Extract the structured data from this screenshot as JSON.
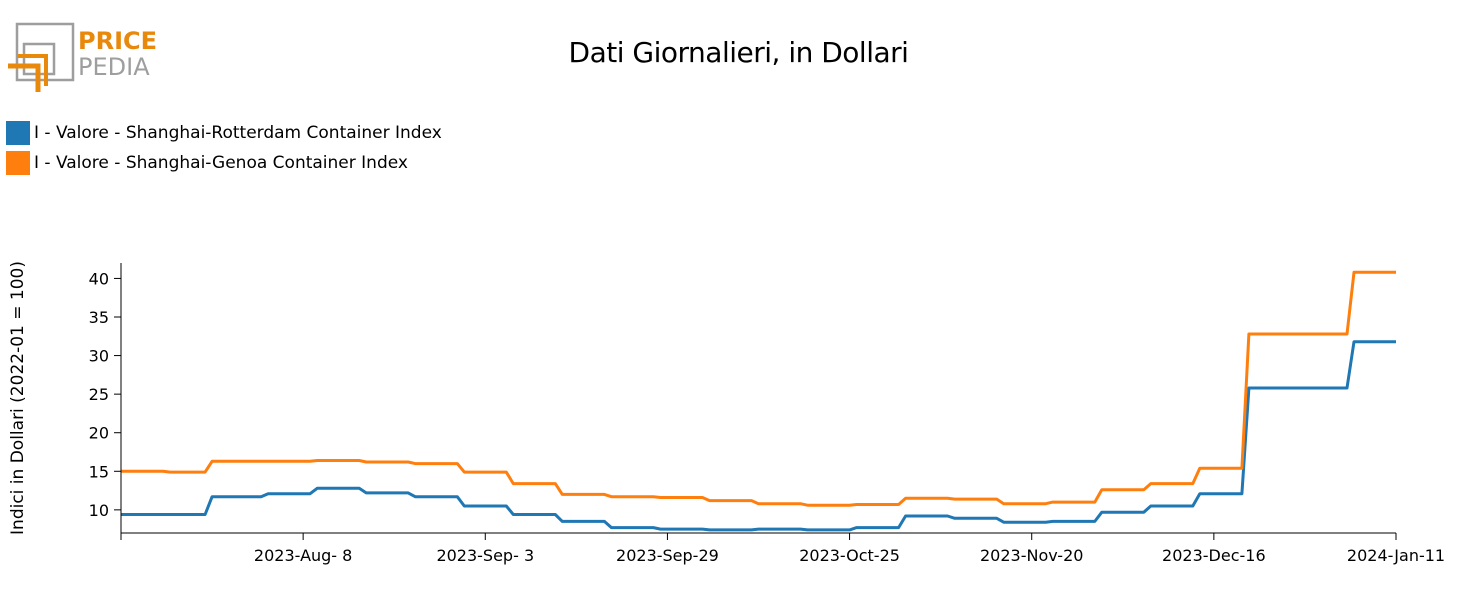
{
  "logo": {
    "text_top": "PRICE",
    "text_bottom": "PEDIA",
    "accent_color": "#e8890c",
    "grey_color": "#9e9e9e"
  },
  "colors": {
    "series1": "#1f77b4",
    "series2": "#ff7f0e"
  },
  "chart_data": {
    "type": "line",
    "title": "Dati Giornalieri, in Dollari",
    "ylabel": "Indici in Dollari (2022-01 = 100)",
    "xlabel": "",
    "ylim": [
      7,
      42
    ],
    "yticks": [
      10,
      15,
      20,
      25,
      30,
      35,
      40
    ],
    "xlim": [
      "2023-07-13",
      "2024-01-11"
    ],
    "xticks": [
      {
        "date": "2023-08-08",
        "label": "2023-Aug- 8"
      },
      {
        "date": "2023-09-03",
        "label": "2023-Sep- 3"
      },
      {
        "date": "2023-09-29",
        "label": "2023-Sep-29"
      },
      {
        "date": "2023-10-25",
        "label": "2023-Oct-25"
      },
      {
        "date": "2023-11-20",
        "label": "2023-Nov-20"
      },
      {
        "date": "2023-12-16",
        "label": "2023-Dec-16"
      },
      {
        "date": "2024-01-11",
        "label": "2024-Jan-11"
      }
    ],
    "legend_position": "top-left",
    "grid": false,
    "series": [
      {
        "name": "I - Valore - Shanghai-Rotterdam Container Index",
        "color": "#1f77b4",
        "x": [
          "2023-07-13",
          "2023-07-25",
          "2023-07-26",
          "2023-08-02",
          "2023-08-03",
          "2023-08-09",
          "2023-08-10",
          "2023-08-16",
          "2023-08-17",
          "2023-08-23",
          "2023-08-24",
          "2023-08-30",
          "2023-08-31",
          "2023-09-06",
          "2023-09-07",
          "2023-09-13",
          "2023-09-14",
          "2023-09-20",
          "2023-09-21",
          "2023-09-27",
          "2023-09-28",
          "2023-10-04",
          "2023-10-05",
          "2023-10-11",
          "2023-10-12",
          "2023-10-18",
          "2023-10-19",
          "2023-10-25",
          "2023-10-26",
          "2023-11-01",
          "2023-11-02",
          "2023-11-08",
          "2023-11-09",
          "2023-11-15",
          "2023-11-16",
          "2023-11-22",
          "2023-11-23",
          "2023-11-29",
          "2023-11-30",
          "2023-12-06",
          "2023-12-07",
          "2023-12-13",
          "2023-12-14",
          "2023-12-20",
          "2023-12-21",
          "2023-12-27",
          "2023-12-28",
          "2024-01-04",
          "2024-01-05",
          "2024-01-11"
        ],
        "y": [
          9.4,
          9.4,
          11.7,
          11.7,
          12.1,
          12.1,
          12.8,
          12.8,
          12.2,
          12.2,
          11.7,
          11.7,
          10.5,
          10.5,
          9.4,
          9.4,
          8.5,
          8.5,
          7.7,
          7.7,
          7.5,
          7.5,
          7.4,
          7.4,
          7.5,
          7.5,
          7.4,
          7.4,
          7.7,
          7.7,
          9.2,
          9.2,
          8.9,
          8.9,
          8.4,
          8.4,
          8.5,
          8.5,
          9.7,
          9.7,
          10.5,
          10.5,
          12.1,
          12.1,
          25.8,
          25.8,
          25.8,
          25.8,
          31.8,
          31.8
        ]
      },
      {
        "name": "I - Valore - Shanghai-Genoa Container Index",
        "color": "#ff7f0e",
        "x": [
          "2023-07-13",
          "2023-07-19",
          "2023-07-20",
          "2023-07-25",
          "2023-07-26",
          "2023-08-02",
          "2023-08-03",
          "2023-08-09",
          "2023-08-10",
          "2023-08-16",
          "2023-08-17",
          "2023-08-23",
          "2023-08-24",
          "2023-08-30",
          "2023-08-31",
          "2023-09-06",
          "2023-09-07",
          "2023-09-13",
          "2023-09-14",
          "2023-09-20",
          "2023-09-21",
          "2023-09-27",
          "2023-09-28",
          "2023-10-04",
          "2023-10-05",
          "2023-10-11",
          "2023-10-12",
          "2023-10-18",
          "2023-10-19",
          "2023-10-25",
          "2023-10-26",
          "2023-11-01",
          "2023-11-02",
          "2023-11-08",
          "2023-11-09",
          "2023-11-15",
          "2023-11-16",
          "2023-11-22",
          "2023-11-23",
          "2023-11-29",
          "2023-11-30",
          "2023-12-06",
          "2023-12-07",
          "2023-12-13",
          "2023-12-14",
          "2023-12-20",
          "2023-12-21",
          "2023-12-27",
          "2023-12-28",
          "2024-01-04",
          "2024-01-05",
          "2024-01-11"
        ],
        "y": [
          15.0,
          15.0,
          14.9,
          14.9,
          16.3,
          16.3,
          16.3,
          16.3,
          16.4,
          16.4,
          16.2,
          16.2,
          16.0,
          16.0,
          14.9,
          14.9,
          13.4,
          13.4,
          12.0,
          12.0,
          11.7,
          11.7,
          11.6,
          11.6,
          11.2,
          11.2,
          10.8,
          10.8,
          10.6,
          10.6,
          10.7,
          10.7,
          11.5,
          11.5,
          11.4,
          11.4,
          10.8,
          10.8,
          11.0,
          11.0,
          12.6,
          12.6,
          13.4,
          13.4,
          15.4,
          15.4,
          32.8,
          32.8,
          32.8,
          32.8,
          40.8,
          40.8
        ]
      }
    ]
  }
}
